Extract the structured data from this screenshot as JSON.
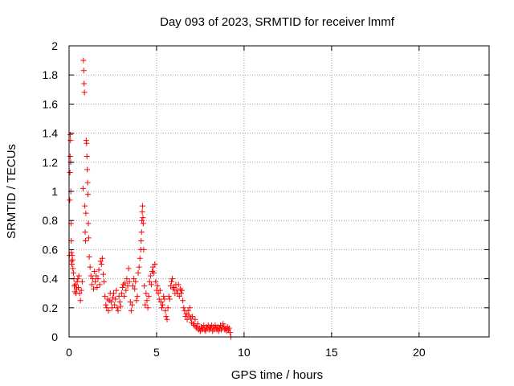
{
  "chart_data": {
    "type": "scatter",
    "title": "Day 093 of 2023, SRMTID for receiver lmmf",
    "xlabel": "GPS time / hours",
    "ylabel": "SRMTID / TECUs",
    "xlim": [
      0,
      24
    ],
    "ylim": [
      0,
      2
    ],
    "xticks": [
      0,
      5,
      10,
      15,
      20
    ],
    "yticks": [
      0,
      0.2,
      0.4,
      0.6,
      0.8,
      1,
      1.2,
      1.4,
      1.6,
      1.8,
      2
    ],
    "xtick_labels": [
      "0",
      "5",
      "10",
      "15",
      "20"
    ],
    "ytick_labels": [
      "0",
      "0.2",
      "0.4",
      "0.6",
      "0.8",
      "1",
      "1.2",
      "1.4",
      "1.6",
      "1.8",
      "2"
    ],
    "grid": true,
    "marker": "+",
    "color": "#ff0000",
    "series": [
      {
        "name": "SRMTID",
        "points": [
          [
            0.02,
            0.56
          ],
          [
            0.04,
            0.94
          ],
          [
            0.05,
            1.13
          ],
          [
            0.06,
            1.24
          ],
          [
            0.07,
            1.39
          ],
          [
            0.08,
            1.35
          ],
          [
            0.09,
            1.2
          ],
          [
            0.1,
            1.0
          ],
          [
            0.11,
            0.78
          ],
          [
            0.12,
            0.66
          ],
          [
            0.13,
            0.58
          ],
          [
            0.14,
            0.52
          ],
          [
            0.16,
            0.5
          ],
          [
            0.18,
            0.56
          ],
          [
            0.2,
            0.53
          ],
          [
            0.22,
            0.47
          ],
          [
            0.25,
            0.44
          ],
          [
            0.28,
            0.4
          ],
          [
            0.3,
            0.35
          ],
          [
            0.33,
            0.31
          ],
          [
            0.36,
            0.36
          ],
          [
            0.4,
            0.3
          ],
          [
            0.43,
            0.33
          ],
          [
            0.46,
            0.38
          ],
          [
            0.5,
            0.4
          ],
          [
            0.53,
            0.34
          ],
          [
            0.56,
            0.42
          ],
          [
            0.6,
            0.3
          ],
          [
            0.65,
            0.25
          ],
          [
            0.7,
            0.32
          ],
          [
            0.75,
            0.38
          ],
          [
            0.8,
            1.02
          ],
          [
            0.82,
            1.9
          ],
          [
            0.84,
            1.83
          ],
          [
            0.86,
            1.74
          ],
          [
            0.88,
            1.68
          ],
          [
            0.9,
            0.9
          ],
          [
            0.92,
            0.72
          ],
          [
            0.94,
            0.66
          ],
          [
            0.96,
            0.85
          ],
          [
            0.98,
            1.35
          ],
          [
            1.0,
            1.33
          ],
          [
            1.02,
            1.24
          ],
          [
            1.04,
            1.15
          ],
          [
            1.06,
            1.06
          ],
          [
            1.08,
            0.98
          ],
          [
            1.1,
            0.78
          ],
          [
            1.12,
            0.68
          ],
          [
            1.15,
            0.55
          ],
          [
            1.2,
            0.48
          ],
          [
            1.25,
            0.42
          ],
          [
            1.3,
            0.36
          ],
          [
            1.35,
            0.4
          ],
          [
            1.4,
            0.33
          ],
          [
            1.45,
            0.45
          ],
          [
            1.5,
            0.38
          ],
          [
            1.55,
            0.42
          ],
          [
            1.6,
            0.34
          ],
          [
            1.65,
            0.4
          ],
          [
            1.7,
            0.46
          ],
          [
            1.75,
            0.36
          ],
          [
            1.8,
            0.52
          ],
          [
            1.85,
            0.5
          ],
          [
            1.9,
            0.54
          ],
          [
            1.95,
            0.43
          ],
          [
            2.0,
            0.38
          ],
          [
            2.05,
            0.28
          ],
          [
            2.1,
            0.22
          ],
          [
            2.15,
            0.2
          ],
          [
            2.2,
            0.26
          ],
          [
            2.25,
            0.18
          ],
          [
            2.3,
            0.25
          ],
          [
            2.35,
            0.3
          ],
          [
            2.4,
            0.24
          ],
          [
            2.45,
            0.2
          ],
          [
            2.5,
            0.27
          ],
          [
            2.55,
            0.3
          ],
          [
            2.6,
            0.22
          ],
          [
            2.65,
            0.26
          ],
          [
            2.7,
            0.32
          ],
          [
            2.75,
            0.2
          ],
          [
            2.8,
            0.18
          ],
          [
            2.85,
            0.28
          ],
          [
            2.9,
            0.24
          ],
          [
            2.95,
            0.21
          ],
          [
            3.0,
            0.3
          ],
          [
            3.05,
            0.34
          ],
          [
            3.1,
            0.36
          ],
          [
            3.15,
            0.28
          ],
          [
            3.2,
            0.37
          ],
          [
            3.25,
            0.32
          ],
          [
            3.3,
            0.4
          ],
          [
            3.35,
            0.35
          ],
          [
            3.4,
            0.47
          ],
          [
            3.45,
            0.38
          ],
          [
            3.5,
            0.24
          ],
          [
            3.55,
            0.18
          ],
          [
            3.6,
            0.22
          ],
          [
            3.65,
            0.35
          ],
          [
            3.7,
            0.4
          ],
          [
            3.75,
            0.33
          ],
          [
            3.8,
            0.38
          ],
          [
            3.85,
            0.25
          ],
          [
            3.9,
            0.28
          ],
          [
            3.95,
            0.44
          ],
          [
            4.0,
            0.48
          ],
          [
            4.05,
            0.54
          ],
          [
            4.1,
            0.6
          ],
          [
            4.12,
            0.66
          ],
          [
            4.14,
            0.72
          ],
          [
            4.16,
            0.8
          ],
          [
            4.18,
            0.86
          ],
          [
            4.2,
            0.9
          ],
          [
            4.22,
            0.82
          ],
          [
            4.24,
            0.78
          ],
          [
            4.26,
            0.6
          ],
          [
            4.3,
            0.35
          ],
          [
            4.35,
            0.22
          ],
          [
            4.4,
            0.3
          ],
          [
            4.45,
            0.25
          ],
          [
            4.5,
            0.2
          ],
          [
            4.55,
            0.28
          ],
          [
            4.6,
            0.38
          ],
          [
            4.65,
            0.42
          ],
          [
            4.7,
            0.36
          ],
          [
            4.75,
            0.45
          ],
          [
            4.8,
            0.48
          ],
          [
            4.85,
            0.44
          ],
          [
            4.9,
            0.5
          ],
          [
            4.95,
            0.38
          ],
          [
            5.0,
            0.32
          ],
          [
            5.05,
            0.35
          ],
          [
            5.1,
            0.3
          ],
          [
            5.15,
            0.26
          ],
          [
            5.2,
            0.32
          ],
          [
            5.25,
            0.24
          ],
          [
            5.3,
            0.2
          ],
          [
            5.35,
            0.22
          ],
          [
            5.4,
            0.28
          ],
          [
            5.45,
            0.26
          ],
          [
            5.5,
            0.18
          ],
          [
            5.55,
            0.14
          ],
          [
            5.6,
            0.12
          ],
          [
            5.65,
            0.2
          ],
          [
            5.7,
            0.28
          ],
          [
            5.75,
            0.26
          ],
          [
            5.8,
            0.35
          ],
          [
            5.85,
            0.38
          ],
          [
            5.9,
            0.4
          ],
          [
            5.95,
            0.33
          ],
          [
            6.0,
            0.34
          ],
          [
            6.05,
            0.3
          ],
          [
            6.1,
            0.36
          ],
          [
            6.15,
            0.32
          ],
          [
            6.2,
            0.3
          ],
          [
            6.25,
            0.36
          ],
          [
            6.3,
            0.28
          ],
          [
            6.35,
            0.33
          ],
          [
            6.4,
            0.3
          ],
          [
            6.45,
            0.32
          ],
          [
            6.5,
            0.25
          ],
          [
            6.55,
            0.2
          ],
          [
            6.6,
            0.18
          ],
          [
            6.65,
            0.14
          ],
          [
            6.7,
            0.16
          ],
          [
            6.75,
            0.12
          ],
          [
            6.8,
            0.18
          ],
          [
            6.85,
            0.15
          ],
          [
            6.9,
            0.2
          ],
          [
            6.95,
            0.13
          ],
          [
            7.0,
            0.1
          ],
          [
            7.05,
            0.14
          ],
          [
            7.1,
            0.09
          ],
          [
            7.15,
            0.08
          ],
          [
            7.2,
            0.12
          ],
          [
            7.25,
            0.07
          ],
          [
            7.3,
            0.06
          ],
          [
            7.35,
            0.09
          ],
          [
            7.4,
            0.05
          ],
          [
            7.45,
            0.06
          ],
          [
            7.5,
            0.04
          ],
          [
            7.55,
            0.07
          ],
          [
            7.6,
            0.05
          ],
          [
            7.65,
            0.06
          ],
          [
            7.7,
            0.08
          ],
          [
            7.75,
            0.05
          ],
          [
            7.8,
            0.04
          ],
          [
            7.85,
            0.07
          ],
          [
            7.9,
            0.06
          ],
          [
            7.95,
            0.08
          ],
          [
            8.0,
            0.05
          ],
          [
            8.05,
            0.07
          ],
          [
            8.1,
            0.06
          ],
          [
            8.15,
            0.08
          ],
          [
            8.2,
            0.04
          ],
          [
            8.25,
            0.07
          ],
          [
            8.3,
            0.05
          ],
          [
            8.35,
            0.08
          ],
          [
            8.4,
            0.06
          ],
          [
            8.45,
            0.05
          ],
          [
            8.5,
            0.07
          ],
          [
            8.55,
            0.04
          ],
          [
            8.6,
            0.06
          ],
          [
            8.65,
            0.08
          ],
          [
            8.7,
            0.05
          ],
          [
            8.75,
            0.06
          ],
          [
            8.8,
            0.09
          ],
          [
            8.85,
            0.07
          ],
          [
            8.9,
            0.05
          ],
          [
            8.95,
            0.06
          ],
          [
            9.0,
            0.04
          ],
          [
            9.05,
            0.07
          ],
          [
            9.1,
            0.05
          ],
          [
            9.15,
            0.06
          ],
          [
            9.2,
            0.03
          ],
          [
            9.25,
            0.0
          ]
        ]
      }
    ]
  }
}
